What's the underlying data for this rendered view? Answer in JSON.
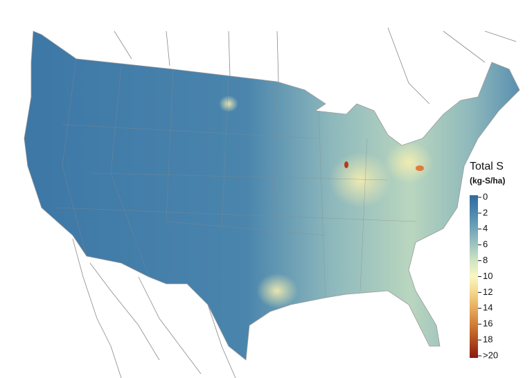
{
  "legend": {
    "title": "Total S",
    "units": "(kg-S/ha)",
    "range": [
      0,
      20
    ],
    "ticks": [
      0,
      2,
      4,
      6,
      8,
      10,
      12,
      14,
      16,
      18,
      {
        "value": 20,
        "label": ">20"
      }
    ],
    "colors": [
      "#2f6aa0",
      "#4a85ad",
      "#6fa3b8",
      "#9cc3c0",
      "#cfe3c2",
      "#fbf7c0",
      "#f3d68a",
      "#e6a95a",
      "#cf7a35",
      "#b04a1d",
      "#8a1a10"
    ]
  }
}
